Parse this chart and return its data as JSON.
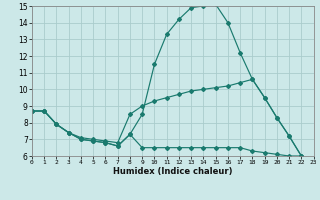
{
  "xlabel": "Humidex (Indice chaleur)",
  "x_max": [
    0,
    1,
    2,
    3,
    4,
    5,
    6,
    7,
    8,
    9,
    10,
    11,
    12,
    13,
    14,
    15,
    16,
    17,
    18,
    19,
    20,
    21,
    22
  ],
  "line_max": [
    8.7,
    8.7,
    7.9,
    7.4,
    7.0,
    6.9,
    6.8,
    6.6,
    7.3,
    8.5,
    11.5,
    13.3,
    14.2,
    14.9,
    15.0,
    15.1,
    14.0,
    12.2,
    10.6,
    9.5,
    8.3,
    7.2,
    6.0
  ],
  "x_mean": [
    0,
    1,
    2,
    3,
    4,
    5,
    6,
    7,
    8,
    9,
    10,
    11,
    12,
    13,
    14,
    15,
    16,
    17,
    18,
    19,
    20,
    21,
    22
  ],
  "line_mean": [
    8.7,
    8.7,
    7.9,
    7.4,
    7.1,
    7.0,
    6.9,
    6.8,
    8.5,
    9.0,
    9.3,
    9.5,
    9.7,
    9.9,
    10.0,
    10.1,
    10.2,
    10.4,
    10.6,
    9.5,
    8.3,
    7.2,
    6.0
  ],
  "x_min": [
    0,
    1,
    2,
    3,
    4,
    5,
    6,
    7,
    8,
    9,
    10,
    11,
    12,
    13,
    14,
    15,
    16,
    17,
    18,
    19,
    20,
    21,
    22
  ],
  "line_min": [
    8.7,
    8.7,
    7.9,
    7.4,
    7.0,
    6.9,
    6.8,
    6.6,
    7.3,
    6.5,
    6.5,
    6.5,
    6.5,
    6.5,
    6.5,
    6.5,
    6.5,
    6.5,
    6.3,
    6.2,
    6.1,
    6.0,
    6.0
  ],
  "color": "#1a7a6e",
  "bg_color": "#cce8e8",
  "grid_color": "#aacccc",
  "ylim": [
    6,
    15
  ],
  "yticks": [
    6,
    7,
    8,
    9,
    10,
    11,
    12,
    13,
    14,
    15
  ],
  "xlim": [
    0,
    23
  ],
  "xticks": [
    0,
    1,
    2,
    3,
    4,
    5,
    6,
    7,
    8,
    9,
    10,
    11,
    12,
    13,
    14,
    15,
    16,
    17,
    18,
    19,
    20,
    21,
    22,
    23
  ]
}
